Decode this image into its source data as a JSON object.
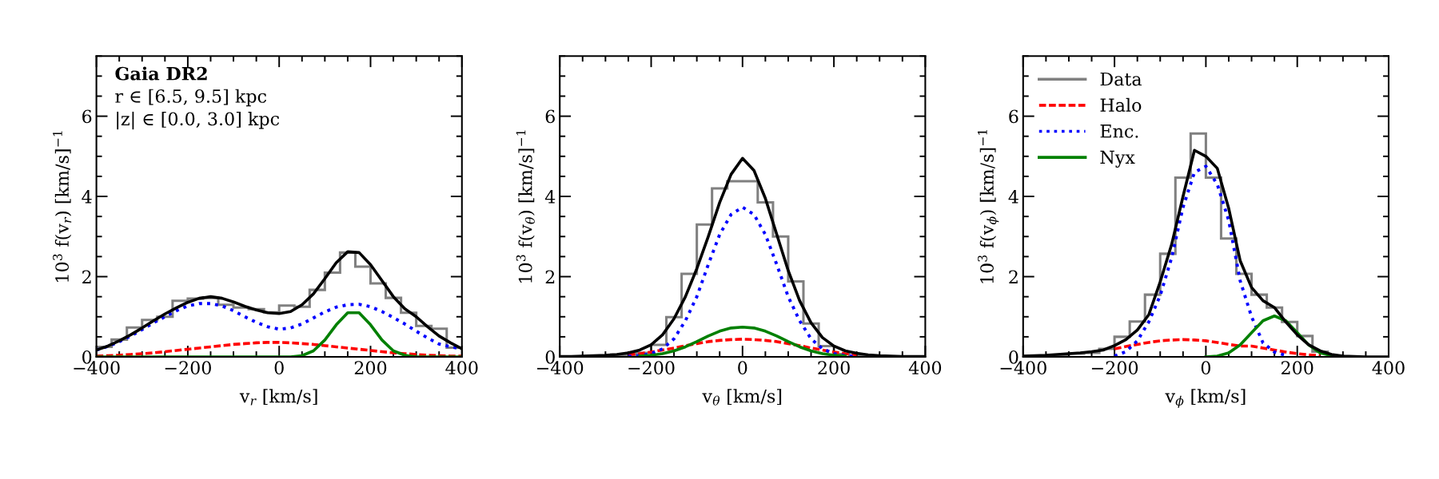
{
  "chart_data": [
    {
      "type": "line",
      "xlabel": "v$_{r}$ [km/s]",
      "ylabel": "10$^{3}$ f(v$_{r}$) [km/s]$^{−1}$",
      "annotations": [
        "Gaia DR2",
        "r ∈ [6.5, 9.5] kpc",
        "|z| ∈ [0.0, 3.0] kpc"
      ],
      "xlim": [
        -400,
        400
      ],
      "xticks": [
        -400,
        -200,
        0,
        200,
        400
      ],
      "ylim": [
        0,
        7.5
      ],
      "yticks": [
        0,
        2,
        4,
        6
      ],
      "grid": false,
      "legend": false,
      "bins": [
        -400,
        -366.7,
        -333.3,
        -300,
        -266.7,
        -233.3,
        -200,
        -166.7,
        -133.3,
        -100,
        -66.7,
        -33.3,
        0,
        33.3,
        66.7,
        100,
        133.3,
        166.7,
        200,
        233.3,
        266.7,
        300,
        333.3,
        366.7,
        400
      ],
      "x": [
        -400,
        -375,
        -350,
        -325,
        -300,
        -275,
        -250,
        -225,
        -200,
        -175,
        -150,
        -125,
        -100,
        -75,
        -50,
        -25,
        0,
        25,
        50,
        75,
        100,
        125,
        150,
        175,
        200,
        225,
        250,
        275,
        300,
        325,
        350,
        375,
        400
      ],
      "series": [
        {
          "type": "histogram",
          "color": "#808080",
          "line_style": "solid",
          "values": [
            0.25,
            0.43,
            0.73,
            0.92,
            1.0,
            1.4,
            1.45,
            1.47,
            1.3,
            1.23,
            1.19,
            1.11,
            1.28,
            1.25,
            1.67,
            2.1,
            2.6,
            2.25,
            1.83,
            1.47,
            1.1,
            0.77,
            0.7,
            0.23
          ]
        },
        {
          "type": "line",
          "color": "#ff0000",
          "line_style": "dashed",
          "values": [
            0.02,
            0.03,
            0.04,
            0.06,
            0.08,
            0.1,
            0.13,
            0.16,
            0.19,
            0.22,
            0.25,
            0.28,
            0.31,
            0.33,
            0.35,
            0.36,
            0.36,
            0.35,
            0.33,
            0.31,
            0.28,
            0.25,
            0.22,
            0.19,
            0.16,
            0.13,
            0.1,
            0.08,
            0.06,
            0.04,
            0.03,
            0.02,
            0.02
          ]
        },
        {
          "type": "line",
          "color": "#0000ff",
          "line_style": "dotted",
          "values": [
            0.17,
            0.26,
            0.38,
            0.52,
            0.68,
            0.85,
            1.0,
            1.15,
            1.27,
            1.33,
            1.33,
            1.27,
            1.15,
            1.0,
            0.86,
            0.75,
            0.69,
            0.72,
            0.82,
            0.97,
            1.12,
            1.24,
            1.3,
            1.31,
            1.25,
            1.13,
            0.98,
            0.82,
            0.64,
            0.47,
            0.32,
            0.25,
            0.2
          ]
        },
        {
          "type": "line",
          "color": "#008000",
          "line_style": "solid",
          "values": [
            0,
            0,
            0,
            0,
            0,
            0,
            0,
            0,
            0,
            0,
            0,
            0,
            0,
            0,
            0,
            0,
            0,
            0,
            0.03,
            0.15,
            0.42,
            0.8,
            1.1,
            1.1,
            0.8,
            0.42,
            0.15,
            0.04,
            0,
            0,
            0,
            0,
            0
          ]
        },
        {
          "type": "line",
          "color": "#000000",
          "line_style": "solid",
          "values": [
            0.17,
            0.27,
            0.4,
            0.55,
            0.72,
            0.9,
            1.07,
            1.22,
            1.36,
            1.46,
            1.5,
            1.46,
            1.37,
            1.26,
            1.17,
            1.1,
            1.08,
            1.13,
            1.3,
            1.57,
            1.95,
            2.35,
            2.62,
            2.6,
            2.3,
            1.9,
            1.5,
            1.2,
            1.0,
            0.75,
            0.52,
            0.35,
            0.2
          ]
        }
      ]
    },
    {
      "type": "line",
      "xlabel": "v$_{θ}$ [km/s]",
      "ylabel": "10$^{3}$ f(v$_{θ}$) [km/s]$^{−1}$",
      "xlim": [
        -400,
        400
      ],
      "xticks": [
        -400,
        -200,
        0,
        200,
        400
      ],
      "ylim": [
        0,
        7.5
      ],
      "yticks": [
        0,
        2,
        4,
        6
      ],
      "grid": false,
      "legend": false,
      "bins": [
        -400,
        -366.7,
        -333.3,
        -300,
        -266.7,
        -233.3,
        -200,
        -166.7,
        -133.3,
        -100,
        -66.7,
        -33.3,
        0,
        33.3,
        66.7,
        100,
        133.3,
        166.7,
        200,
        233.3,
        266.7,
        300,
        333.3,
        366.7,
        400
      ],
      "x": [
        -400,
        -375,
        -350,
        -325,
        -300,
        -275,
        -250,
        -225,
        -200,
        -175,
        -150,
        -125,
        -100,
        -75,
        -50,
        -25,
        0,
        25,
        50,
        75,
        100,
        125,
        150,
        175,
        200,
        225,
        250,
        275,
        300,
        325,
        350,
        375,
        400
      ],
      "series": [
        {
          "type": "histogram",
          "color": "#808080",
          "line_style": "solid",
          "values": [
            0.01,
            0.01,
            0.02,
            0.03,
            0.05,
            0.1,
            0.3,
            0.99,
            2.07,
            3.3,
            4.2,
            4.38,
            4.38,
            3.85,
            3.0,
            1.88,
            0.83,
            0.27,
            0.07,
            0.03,
            0.02,
            0.01,
            0.01,
            0.01
          ]
        },
        {
          "type": "line",
          "color": "#ff0000",
          "line_style": "dashed",
          "values": [
            null,
            null,
            null,
            null,
            null,
            null,
            0.05,
            0.08,
            0.12,
            0.17,
            0.22,
            0.28,
            0.33,
            0.38,
            0.41,
            0.43,
            0.44,
            0.43,
            0.41,
            0.38,
            0.33,
            0.28,
            0.22,
            0.17,
            0.12,
            0.08,
            0.05,
            null,
            null,
            null,
            null,
            null,
            null
          ]
        },
        {
          "type": "line",
          "color": "#0000ff",
          "line_style": "dotted",
          "values": [
            null,
            null,
            null,
            null,
            null,
            null,
            0.01,
            0.03,
            0.08,
            0.2,
            0.45,
            0.9,
            1.5,
            2.3,
            3.05,
            3.55,
            3.73,
            3.55,
            3.05,
            2.3,
            1.5,
            0.9,
            0.45,
            0.2,
            0.08,
            0.03,
            0.01,
            null,
            null,
            null,
            null,
            null,
            null
          ]
        },
        {
          "type": "line",
          "color": "#008000",
          "line_style": "solid",
          "values": [
            null,
            null,
            null,
            null,
            null,
            null,
            null,
            0.02,
            0.04,
            0.08,
            0.15,
            0.25,
            0.38,
            0.52,
            0.64,
            0.72,
            0.74,
            0.72,
            0.64,
            0.52,
            0.38,
            0.25,
            0.15,
            0.08,
            0.04,
            0.02,
            null,
            null,
            null,
            null,
            null,
            null,
            null
          ]
        },
        {
          "type": "line",
          "color": "#000000",
          "line_style": "solid",
          "values": [
            0.01,
            0.01,
            0.02,
            0.03,
            0.04,
            0.06,
            0.1,
            0.17,
            0.3,
            0.55,
            0.95,
            1.5,
            2.2,
            3.0,
            3.85,
            4.55,
            4.95,
            4.65,
            3.95,
            3.05,
            2.15,
            1.4,
            0.85,
            0.48,
            0.27,
            0.15,
            0.09,
            0.05,
            0.03,
            0.02,
            0.01,
            0.01,
            0.01
          ]
        }
      ]
    },
    {
      "type": "line",
      "xlabel": "v$_{ϕ}$ [km/s]",
      "ylabel": "10$^{3}$ f(v$_{ϕ}$) [km/s]$^{−1}$",
      "xlim": [
        -400,
        400
      ],
      "xticks": [
        -400,
        -200,
        0,
        200,
        400
      ],
      "ylim": [
        0,
        7.5
      ],
      "yticks": [
        0,
        2,
        4,
        6
      ],
      "grid": false,
      "legend": "top left",
      "x": [
        -400,
        -375,
        -350,
        -325,
        -300,
        -275,
        -250,
        -225,
        -200,
        -175,
        -150,
        -125,
        -100,
        -75,
        -50,
        -25,
        0,
        25,
        50,
        75,
        100,
        125,
        150,
        175,
        200,
        225,
        250,
        275,
        300,
        325,
        350,
        375,
        400
      ],
      "series": [
        {
          "name": "Data",
          "type": "histogram",
          "color": "#808080",
          "line_style": "solid",
          "bins": [
            -400,
            -366.7,
            -333.3,
            -300,
            -266.7,
            -233.3,
            -200,
            -166.7,
            -133.3,
            -100,
            -66.7,
            -33.3,
            0,
            33.3,
            66.7,
            100,
            133.3,
            166.7,
            200,
            233.3,
            266.7,
            300,
            333.3
          ],
          "values": [
            0.02,
            0.03,
            0.05,
            0.08,
            0.1,
            0.2,
            0.5,
            0.88,
            1.55,
            2.57,
            4.47,
            5.57,
            4.47,
            2.95,
            2.07,
            1.55,
            1.23,
            0.87,
            0.52,
            0.13,
            0.03,
            0.01
          ]
        },
        {
          "name": "Halo",
          "type": "line",
          "color": "#ff0000",
          "line_style": "dashed",
          "values": [
            null,
            null,
            null,
            null,
            null,
            null,
            null,
            null,
            0.2,
            0.26,
            0.31,
            0.36,
            0.4,
            0.42,
            0.43,
            0.42,
            0.4,
            0.36,
            0.31,
            0.27,
            0.27,
            0.22,
            0.17,
            0.12,
            0.08,
            0.05,
            0.03,
            null,
            null,
            null,
            null,
            null,
            null
          ]
        },
        {
          "name": "Enc.",
          "type": "line",
          "color": "#0000ff",
          "line_style": "dotted",
          "values": [
            null,
            null,
            null,
            null,
            null,
            null,
            null,
            null,
            0.02,
            0.13,
            0.4,
            0.87,
            1.53,
            2.47,
            3.73,
            4.6,
            4.75,
            4.3,
            3.4,
            1.9,
            1.0,
            0.35,
            0.12,
            0.04,
            null,
            null,
            null,
            null,
            null,
            null,
            null,
            null,
            null
          ]
        },
        {
          "name": "Nyx",
          "type": "line",
          "color": "#008000",
          "line_style": "solid",
          "values": [
            null,
            null,
            null,
            null,
            null,
            null,
            null,
            null,
            null,
            null,
            null,
            null,
            null,
            null,
            null,
            null,
            0,
            0.02,
            0.1,
            0.3,
            0.6,
            0.9,
            1.02,
            0.9,
            0.6,
            0.3,
            0.1,
            0.03,
            0,
            null,
            null,
            null,
            null
          ]
        },
        {
          "type": "line",
          "color": "#000000",
          "line_style": "solid",
          "values": [
            0.02,
            0.03,
            0.04,
            0.06,
            0.08,
            0.1,
            0.13,
            0.17,
            0.28,
            0.43,
            0.67,
            1.05,
            1.87,
            2.8,
            4.0,
            5.15,
            5.0,
            4.7,
            3.7,
            2.4,
            1.73,
            1.4,
            1.23,
            0.87,
            0.55,
            0.3,
            0.15,
            0.06,
            0.02,
            0.01,
            0,
            0,
            0
          ]
        }
      ]
    }
  ]
}
